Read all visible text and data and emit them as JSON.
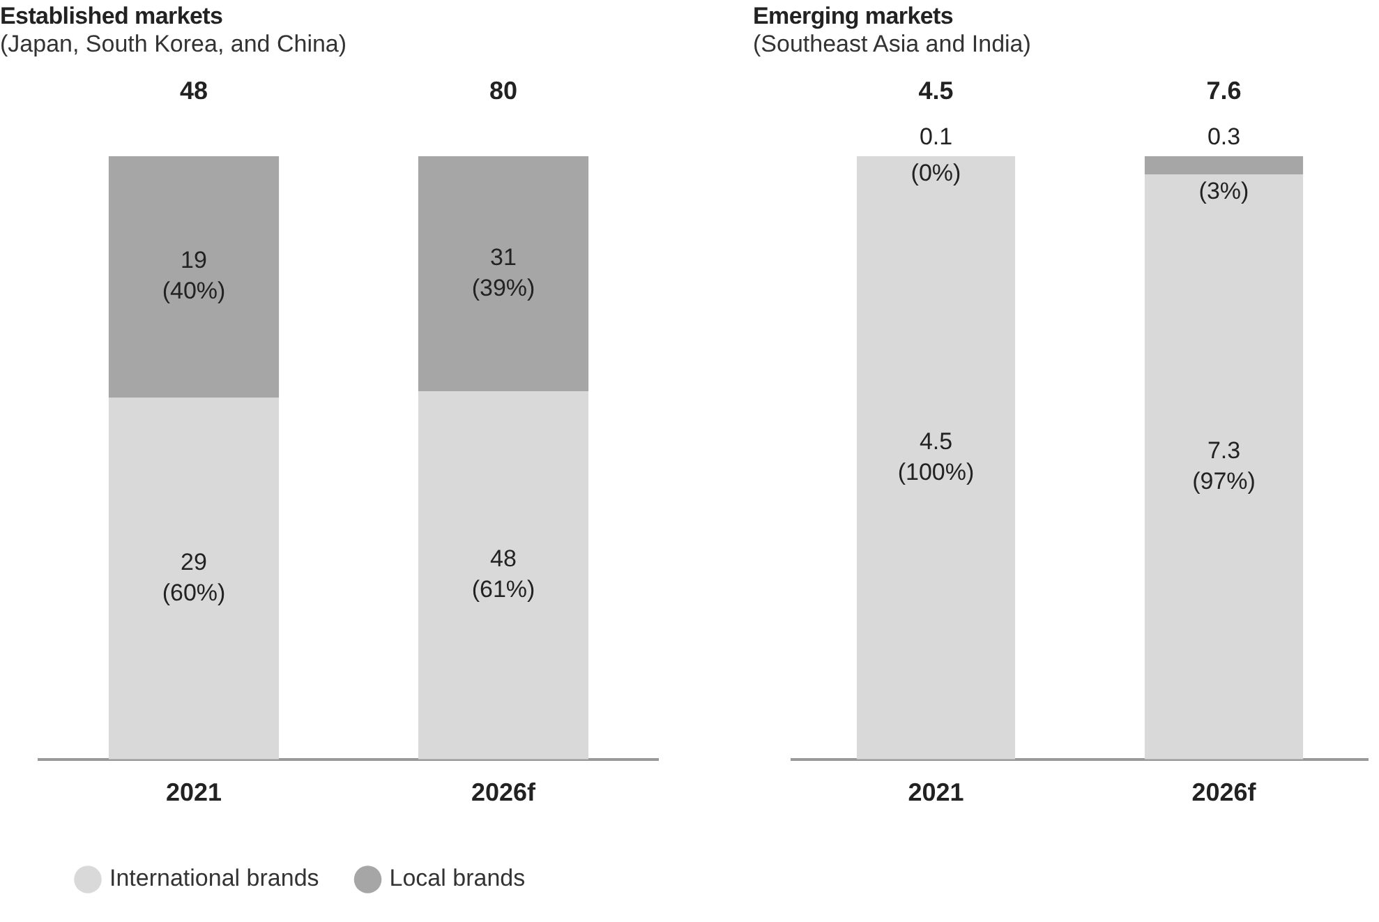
{
  "chart_data": [
    {
      "type": "bar",
      "title": "Established markets",
      "subtitle": "(Japan, South Korea, and China)",
      "categories": [
        "2021",
        "2026f"
      ],
      "stacked": true,
      "ylim": [
        0,
        100
      ],
      "tick_labels": "x",
      "legend": "bottom left",
      "annotations": [
        {
          "text": "48",
          "x": "2021",
          "y": 100
        },
        {
          "text": "80",
          "x": "2026f",
          "y": 100
        }
      ],
      "series": [
        {
          "name": "International brands",
          "color": "#d9d9d9",
          "values": [
            60,
            61
          ],
          "value_labels": [
            "29\n(60%)",
            "48\n(61%)"
          ]
        },
        {
          "name": "Local brands",
          "color": "#a6a6a6",
          "values": [
            40,
            39
          ],
          "value_labels": [
            "19\n(40%)",
            "31\n(39%)"
          ]
        }
      ]
    },
    {
      "type": "bar",
      "title": "Emerging markets",
      "subtitle": "(Southeast Asia and India)",
      "categories": [
        "2021",
        "2026f"
      ],
      "stacked": true,
      "ylim": [
        0,
        100
      ],
      "tick_labels": "x",
      "annotations": [
        {
          "text": "4.5",
          "x": "2021",
          "y": 100
        },
        {
          "text": "7.6",
          "x": "2026f",
          "y": 100
        }
      ],
      "series": [
        {
          "color": "#d9d9d9",
          "values": [
            100,
            97
          ],
          "value_labels": [
            "4.5\n(100%)",
            "7.3\n(97%)"
          ]
        },
        {
          "color": "#a6a6a6",
          "values": [
            0,
            3
          ],
          "value_labels": [
            "0.1\n(0%)",
            "0.3\n(3%)"
          ]
        }
      ]
    }
  ]
}
